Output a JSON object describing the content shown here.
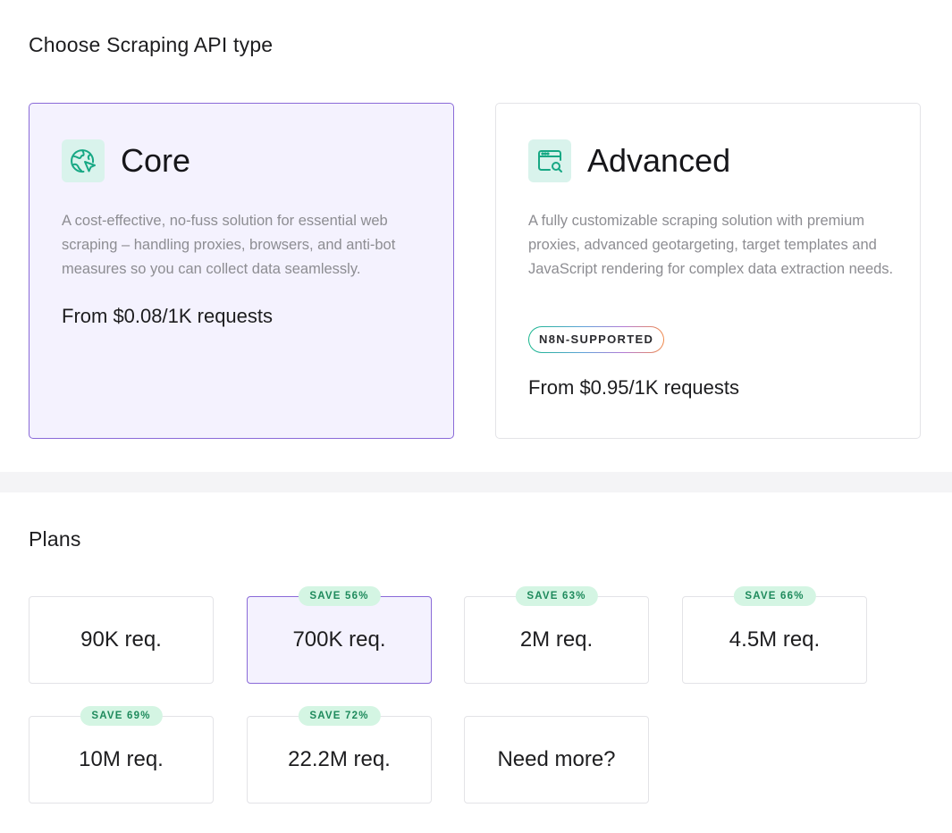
{
  "api_section": {
    "heading": "Choose Scraping API type",
    "cards": [
      {
        "title": "Core",
        "icon": "globe-cursor-icon",
        "description": "A cost-effective, no-fuss solution for essential web scraping – handling proxies, browsers, and anti-bot measures so you can collect data seamlessly.",
        "price": "From $0.08/1K requests",
        "selected": true
      },
      {
        "title": "Advanced",
        "icon": "browser-search-icon",
        "description": "A fully customizable scraping solution with premium proxies, advanced geotargeting, target templates and JavaScript rendering for complex data extraction needs.",
        "badge": "N8N-SUPPORTED",
        "price": "From $0.95/1K requests",
        "selected": false
      }
    ]
  },
  "plans_section": {
    "heading": "Plans",
    "plans": [
      {
        "label": "90K req.",
        "save": "",
        "selected": false
      },
      {
        "label": "700K req.",
        "save": "SAVE 56%",
        "selected": true
      },
      {
        "label": "2M req.",
        "save": "SAVE 63%",
        "selected": false
      },
      {
        "label": "4.5M req.",
        "save": "SAVE 66%",
        "selected": false
      },
      {
        "label": "10M req.",
        "save": "SAVE 69%",
        "selected": false
      },
      {
        "label": "22.2M req.",
        "save": "SAVE 72%",
        "selected": false
      },
      {
        "label": "Need more?",
        "save": "",
        "selected": false
      }
    ]
  },
  "colors": {
    "accent": "#8a6ad8",
    "selected_bg": "#f4f2fe",
    "icon_bg": "#d9f3ec",
    "icon_stroke": "#17a884",
    "save_badge_bg": "#d4f5e3",
    "save_badge_text": "#1e8a5c"
  }
}
